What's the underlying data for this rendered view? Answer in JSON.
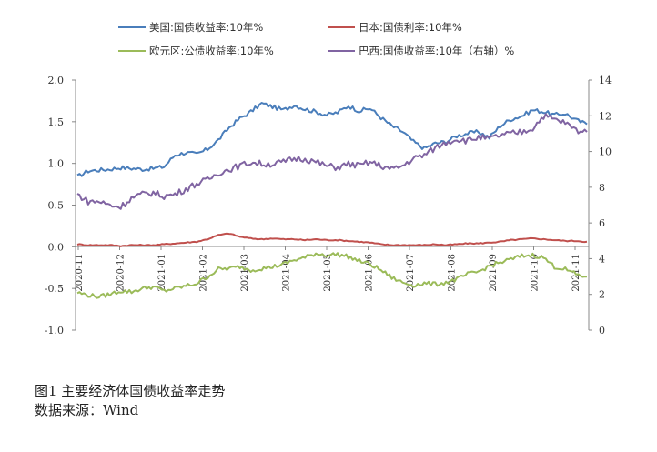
{
  "figure": {
    "caption_title": "图1 主要经济体国债收益率走势",
    "caption_source": "数据来源：Wind"
  },
  "chart_data": {
    "type": "line",
    "left_axis": {
      "ylim": [
        -1.0,
        2.0
      ],
      "ticks": [
        "2.0",
        "1.5",
        "1.0",
        "0.5",
        "0.0",
        "-0.5",
        "-1.0"
      ]
    },
    "right_axis": {
      "ylim": [
        0,
        14
      ],
      "ticks": [
        "14",
        "12",
        "10",
        "8",
        "6",
        "4",
        "2",
        "0"
      ]
    },
    "x_ticks": [
      "2020-11",
      "2020-12",
      "2021-01",
      "2021-02",
      "2021-03",
      "2021-04",
      "2021-05",
      "2021-06",
      "2021-07",
      "2021-08",
      "2021-09",
      "2021-10",
      "2021-11"
    ],
    "legend_position": "top",
    "series": [
      {
        "name": "美国:国债收益率:10年%",
        "axis": "left",
        "color": "#4a7ebb",
        "values": [
          0.84,
          0.91,
          0.92,
          0.93,
          0.95,
          0.94,
          0.93,
          0.94,
          0.96,
          1.1,
          1.13,
          1.11,
          1.17,
          1.28,
          1.43,
          1.54,
          1.62,
          1.72,
          1.68,
          1.64,
          1.7,
          1.65,
          1.62,
          1.58,
          1.61,
          1.69,
          1.63,
          1.66,
          1.55,
          1.45,
          1.38,
          1.26,
          1.18,
          1.24,
          1.26,
          1.33,
          1.36,
          1.38,
          1.31,
          1.45,
          1.53,
          1.57,
          1.64,
          1.62,
          1.58,
          1.6,
          1.52,
          1.47
        ]
      },
      {
        "name": "日本:国债利率:10年%",
        "axis": "left",
        "color": "#c0504d",
        "values": [
          0.03,
          0.02,
          0.02,
          0.02,
          0.01,
          0.02,
          0.02,
          0.02,
          0.03,
          0.04,
          0.05,
          0.06,
          0.09,
          0.14,
          0.16,
          0.12,
          0.1,
          0.09,
          0.1,
          0.09,
          0.09,
          0.08,
          0.09,
          0.08,
          0.08,
          0.07,
          0.06,
          0.05,
          0.03,
          0.02,
          0.02,
          0.02,
          0.02,
          0.03,
          0.02,
          0.03,
          0.04,
          0.04,
          0.05,
          0.06,
          0.08,
          0.09,
          0.1,
          0.09,
          0.08,
          0.07,
          0.07,
          0.06
        ]
      },
      {
        "name": "欧元区:公债收益率:10年%",
        "axis": "left",
        "color": "#9bbb59",
        "values": [
          -0.55,
          -0.58,
          -0.6,
          -0.57,
          -0.53,
          -0.54,
          -0.5,
          -0.48,
          -0.53,
          -0.5,
          -0.47,
          -0.44,
          -0.36,
          -0.27,
          -0.26,
          -0.24,
          -0.28,
          -0.26,
          -0.24,
          -0.21,
          -0.16,
          -0.13,
          -0.08,
          -0.1,
          -0.09,
          -0.12,
          -0.17,
          -0.21,
          -0.28,
          -0.37,
          -0.43,
          -0.46,
          -0.44,
          -0.45,
          -0.43,
          -0.39,
          -0.33,
          -0.3,
          -0.23,
          -0.19,
          -0.15,
          -0.11,
          -0.1,
          -0.13,
          -0.24,
          -0.27,
          -0.33,
          -0.36
        ]
      },
      {
        "name": "巴西:国债收益率:10年（右轴）%",
        "axis": "right",
        "color": "#8064a2",
        "values": [
          7.6,
          7.2,
          7.2,
          7.0,
          6.9,
          7.4,
          7.6,
          7.7,
          7.5,
          7.6,
          7.9,
          8.2,
          8.4,
          8.8,
          9.0,
          9.2,
          9.4,
          9.3,
          9.3,
          9.4,
          9.6,
          9.6,
          9.4,
          9.2,
          9.1,
          9.3,
          9.2,
          9.4,
          9.2,
          9.0,
          9.2,
          9.6,
          9.8,
          10.2,
          10.5,
          10.7,
          10.6,
          10.8,
          10.7,
          10.9,
          11.0,
          11.1,
          11.3,
          12.0,
          11.8,
          11.6,
          11.2,
          11.1
        ]
      }
    ]
  }
}
